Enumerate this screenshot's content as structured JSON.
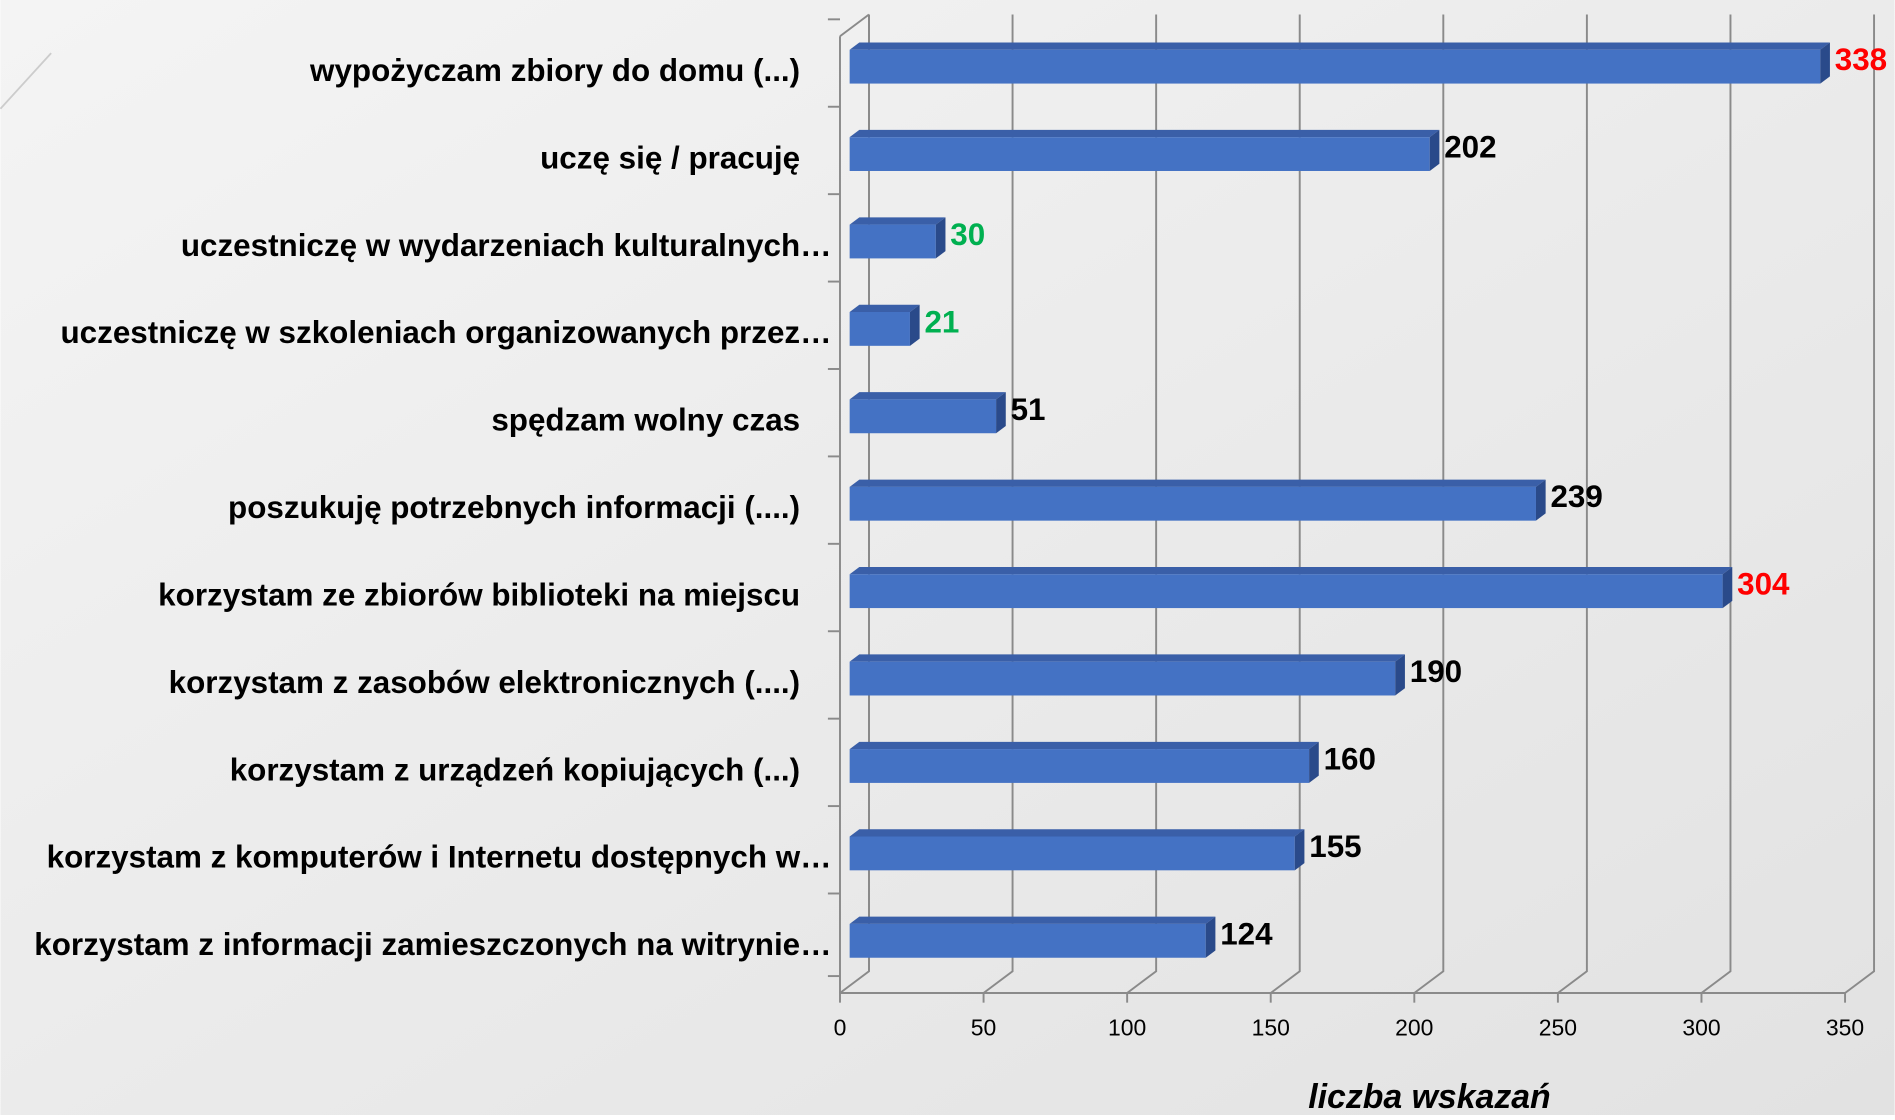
{
  "chart_data": {
    "type": "bar",
    "orientation": "horizontal",
    "categories": [
      "wypożyczam zbiory do domu (...)",
      "uczę się / pracuję",
      "uczestniczę w wydarzeniach kulturalnych…",
      "uczestniczę w szkoleniach organizowanych przez…",
      "spędzam wolny czas",
      "poszukuję potrzebnych informacji (....)",
      "korzystam ze zbiorów biblioteki na miejscu",
      "korzystam z zasobów elektronicznych (....)",
      "korzystam z urządzeń kopiujących (...)",
      "korzystam z komputerów i Internetu dostępnych w…",
      "korzystam z informacji zamieszczonych na witrynie…"
    ],
    "values": [
      338,
      202,
      30,
      21,
      51,
      239,
      304,
      190,
      160,
      155,
      124
    ],
    "value_label_colors": [
      "#ff0000",
      "#000000",
      "#00b050",
      "#00b050",
      "#000000",
      "#000000",
      "#ff0000",
      "#000000",
      "#000000",
      "#000000",
      "#000000"
    ],
    "color": "#4472c4",
    "xlim": [
      0,
      350
    ],
    "xticks": [
      0,
      50,
      100,
      150,
      200,
      250,
      300,
      350
    ],
    "xlabel": "liczba wskazań",
    "grid": true
  }
}
